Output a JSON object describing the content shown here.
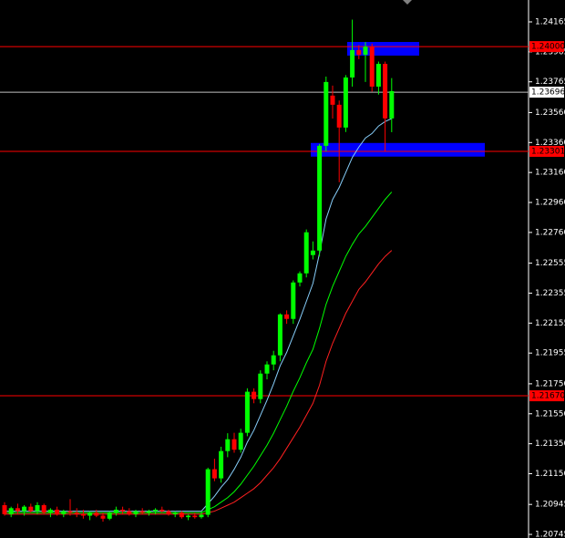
{
  "chart_data": {
    "type": "candlestick",
    "up_color": "#00ff00",
    "down_color": "#ff0000",
    "open": [
      1.2094,
      1.2088,
      1.2092,
      1.209,
      1.2093,
      1.209,
      1.2094,
      1.2089,
      1.2091,
      1.2088,
      1.209,
      1.2089,
      1.2088,
      1.2087,
      1.2089,
      1.2087,
      1.2085,
      1.2089,
      1.2091,
      1.209,
      1.2088,
      1.209,
      1.2089,
      1.209,
      1.2091,
      1.209,
      1.2088,
      1.2089,
      1.2086,
      1.2087,
      1.2086,
      1.20876,
      1.2118,
      1.21119,
      1.21301,
      1.2138,
      1.2131,
      1.21423,
      1.21697,
      1.21648,
      1.21818,
      1.21879,
      1.2194,
      1.22213,
      1.22183,
      1.22426,
      1.22487,
      1.22609,
      1.22639,
      1.23338,
      1.23673,
      1.23612,
      1.2346,
      1.23794,
      1.23977,
      1.23946,
      1.24,
      1.23733,
      1.23885,
      1.23521
    ],
    "high": [
      1.2096,
      1.2093,
      1.2095,
      1.2094,
      1.2095,
      1.2096,
      1.2095,
      1.2092,
      1.2093,
      1.2091,
      1.2098,
      1.2092,
      1.2091,
      1.209,
      1.2091,
      1.2089,
      1.209,
      1.2093,
      1.2093,
      1.2092,
      1.2091,
      1.2092,
      1.2091,
      1.2092,
      1.2093,
      1.2091,
      1.209,
      1.209,
      1.2088,
      1.2089,
      1.209,
      1.2119,
      1.2125,
      1.2133,
      1.2142,
      1.21423,
      1.2145,
      1.2172,
      1.2172,
      1.2184,
      1.219,
      1.2197,
      1.2222,
      1.2224,
      1.2244,
      1.225,
      1.2278,
      1.227,
      1.2335,
      1.238,
      1.2374,
      1.2364,
      1.2381,
      1.2418,
      1.2401,
      1.2403,
      1.2402,
      1.239,
      1.239,
      1.2379
    ],
    "low": [
      1.2087,
      1.2086,
      1.2088,
      1.2087,
      1.2089,
      1.2088,
      1.2088,
      1.2086,
      1.2087,
      1.2086,
      1.2087,
      1.2086,
      1.2085,
      1.2084,
      1.2086,
      1.2083,
      1.2084,
      1.2087,
      1.2088,
      1.2087,
      1.2086,
      1.2088,
      1.2087,
      1.2088,
      1.2089,
      1.2087,
      1.2086,
      1.2085,
      1.2084,
      1.2085,
      1.2085,
      1.2086,
      1.211,
      1.2109,
      1.2126,
      1.2129,
      1.2129,
      1.214,
      1.2162,
      1.2162,
      1.2178,
      1.2184,
      1.219,
      1.2215,
      1.2215,
      1.224,
      1.2246,
      1.2258,
      1.226,
      1.233,
      1.2352,
      1.23095,
      1.2343,
      1.23733,
      1.23916,
      1.23764,
      1.237,
      1.2368,
      1.233,
      1.23429
    ],
    "close": [
      1.2088,
      1.2092,
      1.209,
      1.2093,
      1.209,
      1.2094,
      1.2089,
      1.2091,
      1.2088,
      1.209,
      1.2089,
      1.2088,
      1.2087,
      1.2089,
      1.2087,
      1.2085,
      1.2089,
      1.2091,
      1.209,
      1.2088,
      1.209,
      1.2089,
      1.209,
      1.2091,
      1.209,
      1.2088,
      1.2089,
      1.2086,
      1.2087,
      1.2086,
      1.20876,
      1.2118,
      1.21119,
      1.21301,
      1.2138,
      1.2131,
      1.21423,
      1.21697,
      1.21648,
      1.21818,
      1.21879,
      1.2194,
      1.22213,
      1.22183,
      1.22426,
      1.22487,
      1.22761,
      1.22639,
      1.23338,
      1.23764,
      1.23612,
      1.2346,
      1.23794,
      1.23977,
      1.23946,
      1.24,
      1.23733,
      1.23885,
      1.23521,
      1.23703
    ],
    "series": [
      {
        "color": "#87cefa",
        "values": [
          1.209,
          1.209,
          1.209,
          1.209,
          1.209,
          1.209,
          1.209,
          1.209,
          1.209,
          1.209,
          1.209,
          1.209,
          1.209,
          1.209,
          1.209,
          1.209,
          1.209,
          1.209,
          1.209,
          1.209,
          1.209,
          1.209,
          1.209,
          1.209,
          1.209,
          1.209,
          1.209,
          1.209,
          1.209,
          1.209,
          1.209,
          1.2095,
          1.21,
          1.2106,
          1.2111,
          1.2118,
          1.2126,
          1.2136,
          1.2144,
          1.2154,
          1.2164,
          1.2175,
          1.2187,
          1.2196,
          1.2207,
          1.2218,
          1.223,
          1.2242,
          1.2262,
          1.2285,
          1.2298,
          1.2306,
          1.2316,
          1.2326,
          1.2333,
          1.2339,
          1.2342,
          1.2347,
          1.235,
          1.2352
        ]
      },
      {
        "color": "#00ff00",
        "values": [
          1.2089,
          1.2089,
          1.2089,
          1.2089,
          1.2089,
          1.2089,
          1.2089,
          1.2089,
          1.2089,
          1.2089,
          1.2089,
          1.2089,
          1.2089,
          1.2089,
          1.2089,
          1.2089,
          1.2089,
          1.2089,
          1.2089,
          1.2089,
          1.2089,
          1.2089,
          1.2089,
          1.2089,
          1.2089,
          1.2089,
          1.2089,
          1.2089,
          1.2089,
          1.2089,
          1.2089,
          1.2091,
          1.2093,
          1.2096,
          1.2099,
          1.2103,
          1.2108,
          1.2114,
          1.212,
          1.2127,
          1.2134,
          1.2142,
          1.2151,
          1.216,
          1.217,
          1.2179,
          1.2189,
          1.2198,
          1.2212,
          1.2228,
          1.224,
          1.225,
          1.226,
          1.2268,
          1.2275,
          1.228,
          1.2286,
          1.2292,
          1.2298,
          1.2303
        ]
      },
      {
        "color": "#ff2020",
        "values": [
          1.2088,
          1.2088,
          1.2088,
          1.2088,
          1.2088,
          1.2088,
          1.2088,
          1.2088,
          1.2088,
          1.2088,
          1.2088,
          1.2088,
          1.2088,
          1.2088,
          1.2088,
          1.2088,
          1.2088,
          1.2088,
          1.2088,
          1.2088,
          1.2088,
          1.2088,
          1.2088,
          1.2088,
          1.2088,
          1.2088,
          1.2088,
          1.2088,
          1.2088,
          1.2088,
          1.2088,
          1.2089,
          1.209,
          1.2092,
          1.2094,
          1.2096,
          1.2099,
          1.2102,
          1.2105,
          1.2109,
          1.2114,
          1.2119,
          1.2125,
          1.2132,
          1.2139,
          1.2146,
          1.2154,
          1.2162,
          1.2174,
          1.219,
          1.2202,
          1.2212,
          1.2222,
          1.223,
          1.2238,
          1.2243,
          1.2249,
          1.2255,
          1.226,
          1.2264
        ]
      }
    ],
    "levels": [
      {
        "value": 1.24,
        "label": "1.24000",
        "color": "#ff0000"
      },
      {
        "value": 1.23696,
        "label": "1.23696",
        "color": "#c0c0c0"
      },
      {
        "value": 1.23301,
        "label": "1.23301",
        "color": "#ff0000"
      },
      {
        "value": 1.2167,
        "label": "1.21670",
        "color": "#ff0000"
      }
    ],
    "zones": [
      {
        "top": 1.24031,
        "bottom": 1.2394,
        "color": "#0000ff"
      },
      {
        "top": 1.23357,
        "bottom": 1.23266,
        "color": "#0000ff"
      }
    ],
    "ylim": [
      1.20721,
      1.24311
    ],
    "yticks": [
      1.24165,
      1.23965,
      1.23765,
      {
        "value": 1.2356,
        "label": "1.23560"
      },
      {
        "value": 1.2336,
        "label": "1.23360"
      },
      {
        "value": 1.2316,
        "label": "1.23160"
      },
      {
        "value": 1.2296,
        "label": "1.22960"
      },
      {
        "value": 1.2276,
        "label": "1.22760"
      },
      1.22555,
      1.22355,
      1.22155,
      1.21955,
      {
        "value": 1.2175,
        "label": "1.21750"
      },
      {
        "value": 1.2155,
        "label": "1.21550"
      },
      {
        "value": 1.2135,
        "label": "1.21350"
      },
      {
        "value": 1.2115,
        "label": "1.21150"
      },
      1.20945,
      1.20745
    ]
  }
}
